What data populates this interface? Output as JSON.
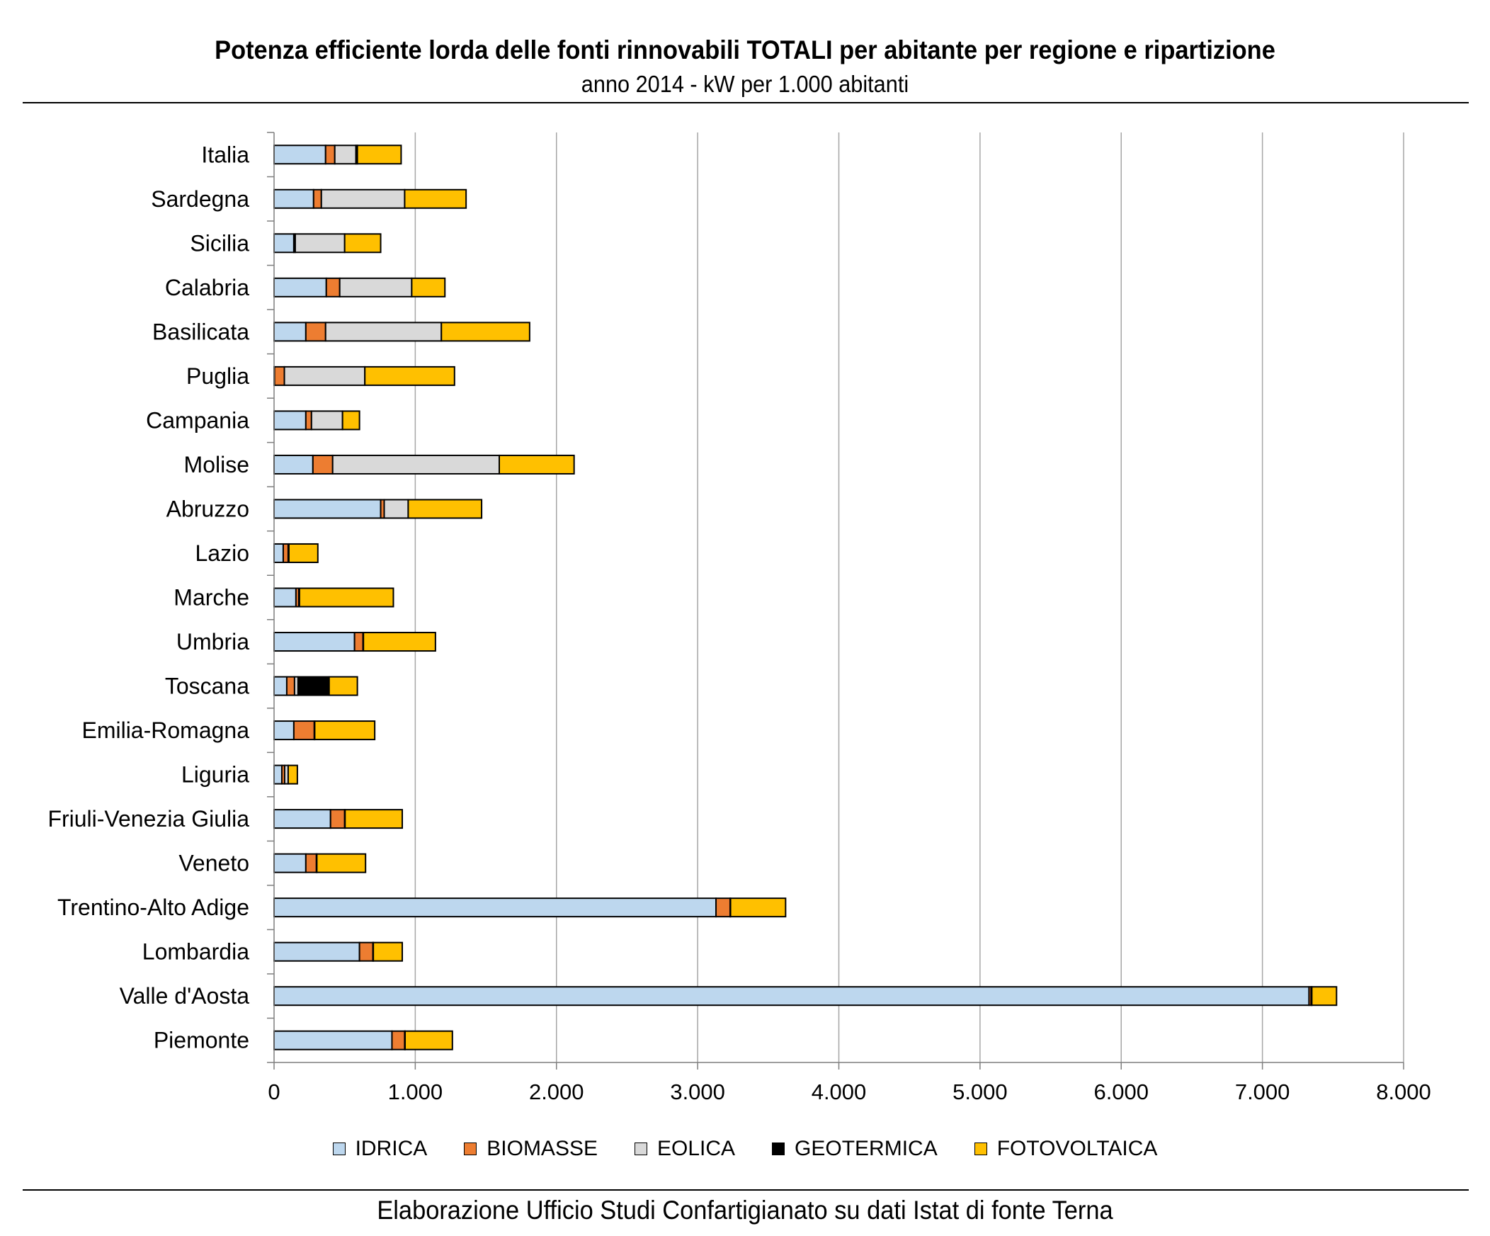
{
  "chart_data": {
    "type": "bar",
    "orientation": "horizontal",
    "stacked": true,
    "title": "Potenza efficiente lorda delle fonti rinnovabili TOTALI per abitante per regione e ripartizione",
    "subtitle": "anno 2014 - kW per 1.000 abitanti",
    "source": "Elaborazione Ufficio Studi Confartigianato su dati Istat di fonte Terna",
    "xlim": [
      0,
      8000
    ],
    "x_ticks": [
      0,
      1000,
      2000,
      3000,
      4000,
      5000,
      6000,
      7000,
      8000
    ],
    "x_tick_labels": [
      "0",
      "1.000",
      "2.000",
      "3.000",
      "4.000",
      "5.000",
      "6.000",
      "7.000",
      "8.000"
    ],
    "grid": "vertical",
    "legend_position": "bottom",
    "categories": [
      "Italia",
      "Sardegna",
      "Sicilia",
      "Calabria",
      "Basilicata",
      "Puglia",
      "Campania",
      "Molise",
      "Abruzzo",
      "Lazio",
      "Marche",
      "Umbria",
      "Toscana",
      "Emilia-Romagna",
      "Liguria",
      "Friuli-Venezia Giulia",
      "Veneto",
      "Trentino-Alto Adige",
      "Lombardia",
      "Valle d'Aosta",
      "Piemonte"
    ],
    "series": [
      {
        "name": "IDRICA",
        "color": "#bdd7ee",
        "values": [
          365,
          280,
          140,
          370,
          225,
          3,
          225,
          275,
          755,
          65,
          155,
          570,
          90,
          140,
          55,
          400,
          225,
          3130,
          605,
          7330,
          835
        ]
      },
      {
        "name": "BIOMASSE",
        "color": "#ed7d31",
        "values": [
          65,
          55,
          10,
          95,
          140,
          70,
          40,
          140,
          25,
          35,
          20,
          60,
          55,
          145,
          20,
          100,
          75,
          100,
          95,
          15,
          90
        ]
      },
      {
        "name": "EOLICA",
        "color": "#d9d9d9",
        "values": [
          150,
          590,
          350,
          510,
          820,
          570,
          220,
          1180,
          170,
          5,
          5,
          3,
          25,
          3,
          25,
          3,
          3,
          3,
          3,
          5,
          3
        ]
      },
      {
        "name": "GEOTERMICA",
        "color": "#000000",
        "values": [
          10,
          0,
          0,
          0,
          0,
          0,
          0,
          0,
          0,
          0,
          0,
          0,
          220,
          0,
          0,
          0,
          0,
          0,
          0,
          0,
          0
        ]
      },
      {
        "name": "FOTOVOLTAICA",
        "color": "#ffc000",
        "values": [
          310,
          435,
          255,
          235,
          625,
          635,
          120,
          530,
          520,
          205,
          665,
          510,
          200,
          425,
          65,
          405,
          345,
          390,
          205,
          175,
          335
        ]
      }
    ]
  }
}
